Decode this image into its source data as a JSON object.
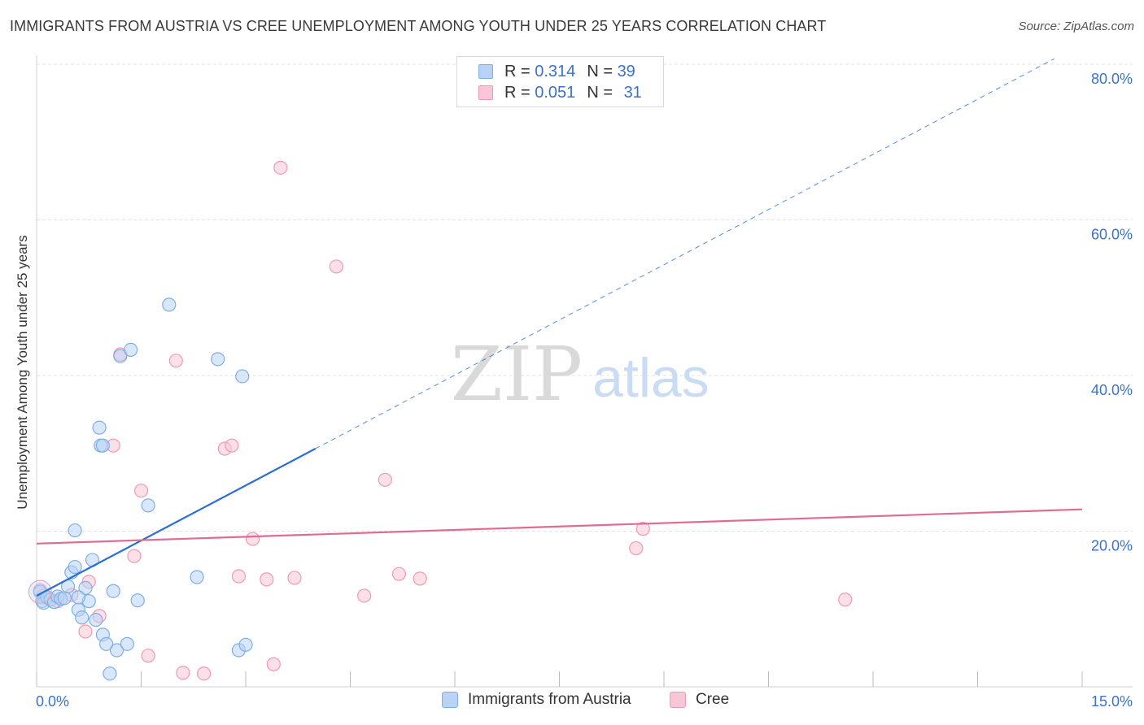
{
  "title": "IMMIGRANTS FROM AUSTRIA VS CREE UNEMPLOYMENT AMONG YOUTH UNDER 25 YEARS CORRELATION CHART",
  "source": "Source: ZipAtlas.com",
  "watermark": {
    "zip": "ZIP",
    "atlas": "atlas"
  },
  "legend": {
    "rows": [
      {
        "r_label": "R =",
        "r_value": "0.314",
        "n_label": "N =",
        "n_value": "39"
      },
      {
        "r_label": "R =",
        "r_value": "0.051",
        "n_label": "N =",
        "n_value": "31"
      }
    ]
  },
  "colors": {
    "blue_fill": "#b8d3f4",
    "blue_stroke": "#7faee6",
    "blue_line": "#2a6fd1",
    "pink_fill": "#f9c6d5",
    "pink_stroke": "#ef9ab4",
    "pink_line": "#e06b94",
    "axis_text": "#3a72c8",
    "grid": "#e3e3e3"
  },
  "chart_data": {
    "type": "scatter",
    "title": "IMMIGRANTS FROM AUSTRIA VS CREE UNEMPLOYMENT AMONG YOUTH UNDER 25 YEARS CORRELATION CHART",
    "xlabel": "",
    "ylabel": "Unemployment Among Youth under 25 years",
    "xlim": [
      0,
      15
    ],
    "ylim": [
      0,
      80
    ],
    "x_tick_labels": [
      "0.0%",
      "15.0%"
    ],
    "y_tick_labels": [
      "20.0%",
      "40.0%",
      "60.0%",
      "80.0%"
    ],
    "y_ticks": [
      20,
      40,
      60,
      80
    ],
    "grid": true,
    "series": [
      {
        "name": "Immigrants from Austria",
        "color": "blue",
        "points": [
          [
            0.05,
            12.2
          ],
          [
            0.08,
            11.0
          ],
          [
            0.1,
            10.8
          ],
          [
            0.15,
            11.5
          ],
          [
            0.2,
            11.2
          ],
          [
            0.25,
            10.9
          ],
          [
            0.3,
            11.6
          ],
          [
            0.35,
            11.3
          ],
          [
            0.4,
            11.4
          ],
          [
            0.45,
            12.9
          ],
          [
            0.5,
            14.7
          ],
          [
            0.55,
            15.4
          ],
          [
            0.6,
            9.9
          ],
          [
            0.65,
            8.9
          ],
          [
            0.7,
            12.7
          ],
          [
            0.75,
            11.0
          ],
          [
            0.8,
            16.3
          ],
          [
            0.85,
            8.6
          ],
          [
            0.9,
            33.3
          ],
          [
            0.92,
            31.0
          ],
          [
            0.95,
            6.7
          ],
          [
            1.0,
            5.5
          ],
          [
            1.05,
            1.7
          ],
          [
            1.1,
            12.3
          ],
          [
            1.15,
            4.7
          ],
          [
            1.2,
            42.5
          ],
          [
            1.3,
            5.5
          ],
          [
            1.35,
            43.3
          ],
          [
            1.45,
            11.1
          ],
          [
            1.6,
            23.3
          ],
          [
            0.55,
            20.1
          ],
          [
            1.9,
            49.1
          ],
          [
            2.3,
            14.1
          ],
          [
            2.6,
            42.1
          ],
          [
            2.9,
            4.7
          ],
          [
            3.0,
            5.4
          ],
          [
            2.95,
            39.9
          ],
          [
            0.6,
            11.5
          ],
          [
            0.95,
            31.0
          ]
        ],
        "trend": {
          "x0": 0.0,
          "y0": 11.7,
          "x1": 4.0,
          "y1": 30.6,
          "dashed_x1": 14.6,
          "dashed_y1": 80.7
        }
      },
      {
        "name": "Cree",
        "color": "pink",
        "points": [
          [
            0.05,
            12.4
          ],
          [
            0.3,
            11.0
          ],
          [
            0.5,
            11.8
          ],
          [
            0.7,
            7.1
          ],
          [
            0.75,
            13.5
          ],
          [
            0.9,
            9.1
          ],
          [
            1.1,
            31.0
          ],
          [
            1.2,
            42.7
          ],
          [
            1.4,
            16.8
          ],
          [
            1.5,
            25.2
          ],
          [
            1.6,
            4.0
          ],
          [
            2.0,
            41.9
          ],
          [
            2.1,
            1.8
          ],
          [
            2.4,
            1.7
          ],
          [
            2.7,
            30.6
          ],
          [
            2.8,
            31.0
          ],
          [
            2.9,
            14.2
          ],
          [
            3.1,
            19.0
          ],
          [
            3.3,
            13.8
          ],
          [
            3.4,
            2.9
          ],
          [
            3.5,
            66.7
          ],
          [
            3.7,
            14.0
          ],
          [
            4.3,
            54.0
          ],
          [
            4.7,
            11.7
          ],
          [
            5.0,
            26.6
          ],
          [
            5.2,
            14.5
          ],
          [
            5.5,
            13.9
          ],
          [
            8.6,
            17.8
          ],
          [
            8.7,
            20.3
          ],
          [
            11.6,
            11.2
          ],
          [
            0.1,
            11.7
          ]
        ],
        "trend": {
          "x0": 0.0,
          "y0": 18.4,
          "x1": 15.0,
          "y1": 22.8
        }
      }
    ]
  },
  "bottom_legend": {
    "items": [
      {
        "label": "Immigrants from Austria"
      },
      {
        "label": "Cree"
      }
    ]
  }
}
